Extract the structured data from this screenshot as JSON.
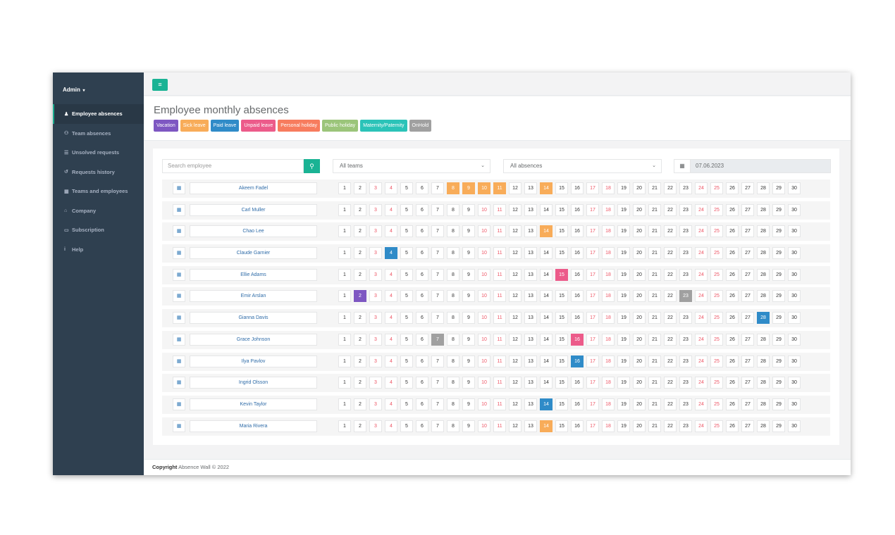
{
  "sidebar": {
    "profile": "Admin",
    "items": [
      {
        "label": "Employee absences",
        "icon": "user-icon",
        "glyph": "♟",
        "active": true
      },
      {
        "label": "Team absences",
        "icon": "users-icon",
        "glyph": "⚇",
        "active": false
      },
      {
        "label": "Unsolved requests",
        "icon": "list-icon",
        "glyph": "☰",
        "active": false
      },
      {
        "label": "Requests history",
        "icon": "history-icon",
        "glyph": "↺",
        "active": false
      },
      {
        "label": "Teams and employees",
        "icon": "grid-icon",
        "glyph": "▦",
        "active": false
      },
      {
        "label": "Company",
        "icon": "bank-icon",
        "glyph": "⌂",
        "active": false
      },
      {
        "label": "Subscription",
        "icon": "credit-card-icon",
        "glyph": "▭",
        "active": false
      },
      {
        "label": "Help",
        "icon": "info-icon",
        "glyph": "i",
        "active": false
      }
    ]
  },
  "header": {
    "menu_icon": "≡",
    "title": "Employee monthly absences"
  },
  "legend": [
    {
      "label": "Vacation",
      "color": "#7e57c2"
    },
    {
      "label": "Sick leave",
      "color": "#f8ac59"
    },
    {
      "label": "Paid leave",
      "color": "#2f8bc8"
    },
    {
      "label": "Unpaid leave",
      "color": "#ec5b8a"
    },
    {
      "label": "Personal holiday",
      "color": "#f77c5e"
    },
    {
      "label": "Public holiday",
      "color": "#9bc57a"
    },
    {
      "label": "Maternity/Paternity",
      "color": "#2bc3b8"
    },
    {
      "label": "OnHold",
      "color": "#a0a0a0"
    }
  ],
  "filters": {
    "search_placeholder": "Search employee",
    "teams": "All teams",
    "absences": "All absences",
    "date": "07.06.2023"
  },
  "calendar": {
    "days": 30,
    "weekend_days": [
      3,
      4,
      10,
      11,
      17,
      18,
      24,
      25
    ]
  },
  "employees": [
    {
      "name": "Akeem Fadel",
      "absences": [
        {
          "day": 8,
          "type": "Sick leave"
        },
        {
          "day": 9,
          "type": "Sick leave"
        },
        {
          "day": 10,
          "type": "Sick leave"
        },
        {
          "day": 11,
          "type": "Sick leave"
        },
        {
          "day": 14,
          "type": "Sick leave"
        }
      ]
    },
    {
      "name": "Carl Muller",
      "absences": []
    },
    {
      "name": "Chao Lee",
      "absences": [
        {
          "day": 14,
          "type": "Sick leave"
        }
      ]
    },
    {
      "name": "Claude Garnier",
      "absences": [
        {
          "day": 4,
          "type": "Paid leave"
        }
      ]
    },
    {
      "name": "Ellie Adams",
      "absences": [
        {
          "day": 15,
          "type": "Unpaid leave"
        }
      ]
    },
    {
      "name": "Emir Arslan",
      "absences": [
        {
          "day": 2,
          "type": "Vacation"
        },
        {
          "day": 23,
          "type": "OnHold"
        }
      ]
    },
    {
      "name": "Gianna Davis",
      "absences": [
        {
          "day": 28,
          "type": "Paid leave"
        }
      ]
    },
    {
      "name": "Grace Johnson",
      "absences": [
        {
          "day": 7,
          "type": "OnHold"
        },
        {
          "day": 16,
          "type": "Unpaid leave"
        }
      ]
    },
    {
      "name": "Ilya Pavlov",
      "absences": [
        {
          "day": 16,
          "type": "Paid leave"
        }
      ]
    },
    {
      "name": "Ingrid Olsson",
      "absences": []
    },
    {
      "name": "Kevin Taylor",
      "absences": [
        {
          "day": 14,
          "type": "Paid leave"
        }
      ]
    },
    {
      "name": "Maria Rivera",
      "absences": [
        {
          "day": 14,
          "type": "Sick leave"
        }
      ]
    }
  ],
  "footer": {
    "bold": "Copyright",
    "text": "Absence Wall © 2022"
  }
}
